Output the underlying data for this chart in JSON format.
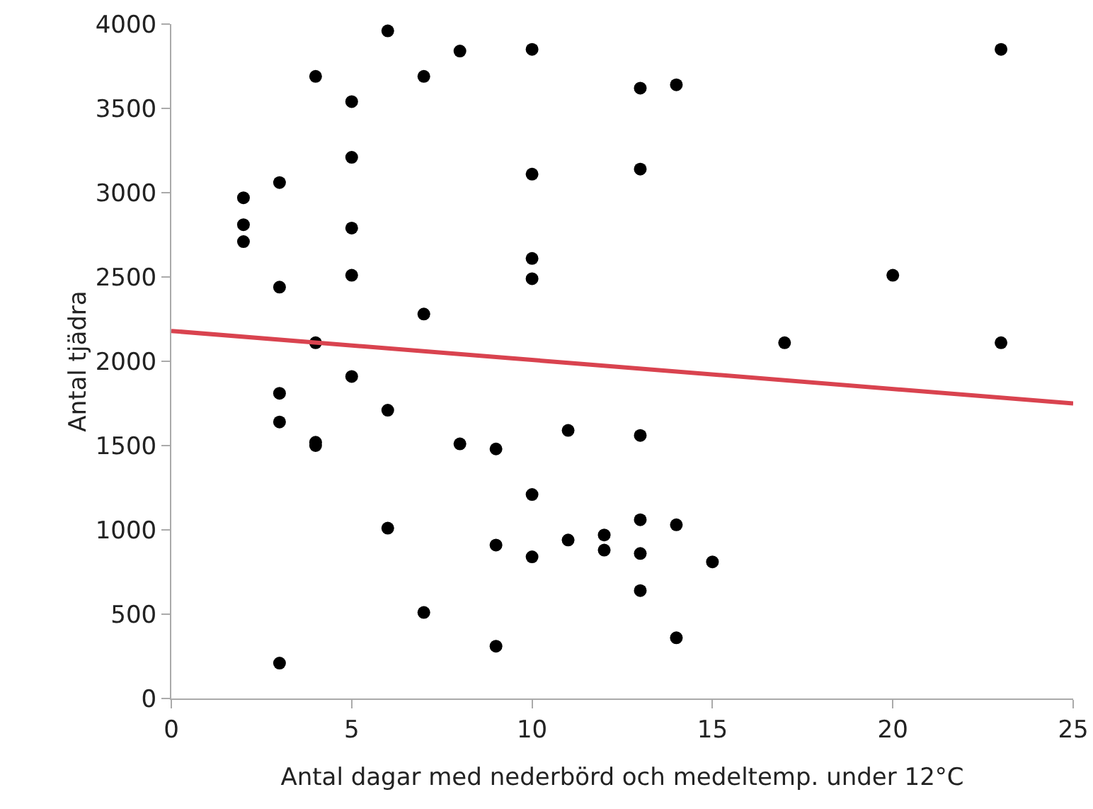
{
  "chart_data": {
    "type": "scatter",
    "xlabel": "Antal dagar med nederbörd och medeltemp. under 12°C",
    "ylabel": "Antal tjädra",
    "grid": false,
    "xlim": [
      0,
      25
    ],
    "xticks": [
      0,
      5,
      10,
      15,
      20,
      25
    ],
    "ylim": [
      0,
      4000
    ],
    "yticks": [
      0,
      500,
      1000,
      1500,
      2000,
      2500,
      3000,
      3500,
      4000
    ],
    "series": [
      {
        "color": "#000000",
        "marker": "circle",
        "x": [
          2,
          2,
          2,
          3,
          3,
          3,
          3,
          3,
          4,
          4,
          4,
          4,
          5,
          5,
          5,
          5,
          5,
          6,
          6,
          6,
          7,
          7,
          7,
          8,
          8,
          9,
          9,
          9,
          10,
          10,
          10,
          10,
          10,
          10,
          11,
          11,
          12,
          12,
          13,
          13,
          13,
          13,
          13,
          13,
          14,
          14,
          14,
          15,
          17,
          20,
          23,
          23
        ],
        "values": [
          2970,
          2810,
          2710,
          3060,
          2440,
          1810,
          1640,
          210,
          3690,
          2110,
          1520,
          1500,
          3540,
          3210,
          2790,
          2510,
          1910,
          3960,
          1710,
          1010,
          3690,
          2280,
          510,
          3840,
          1510,
          1480,
          910,
          310,
          3850,
          3110,
          2610,
          2490,
          1210,
          840,
          1590,
          940,
          970,
          880,
          3620,
          3140,
          1560,
          1060,
          860,
          640,
          3640,
          1030,
          360,
          810,
          2110,
          2510,
          3850,
          2110
        ]
      },
      {
        "type": "line",
        "marker": "none",
        "color": "#d9434f",
        "x": [
          0,
          25
        ],
        "values": [
          2180,
          1750
        ]
      }
    ]
  }
}
